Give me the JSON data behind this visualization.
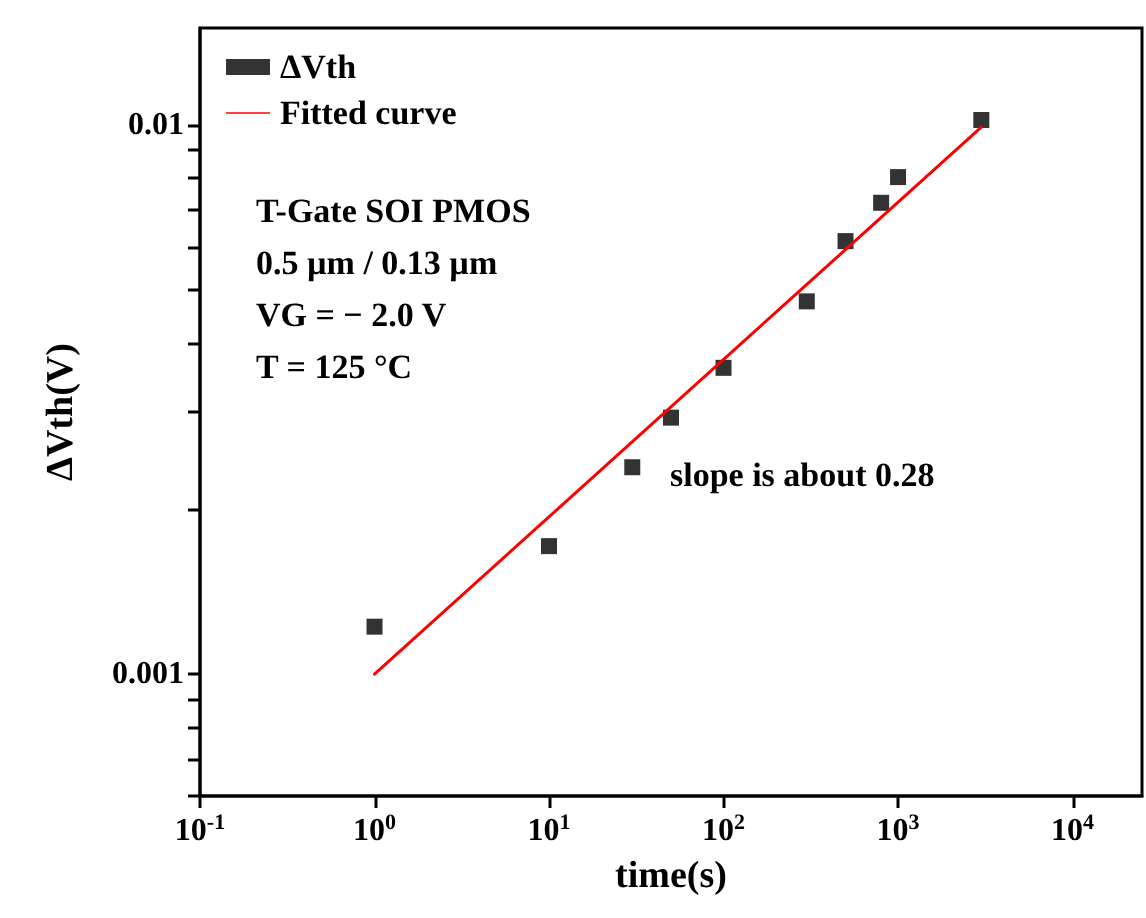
{
  "chart_data": {
    "type": "scatter",
    "xlabel": "time(s)",
    "ylabel": "ΔVth(V)",
    "log": "xy",
    "xlim": [
      0.1,
      25000
    ],
    "ylim": [
      0.0006,
      0.015
    ],
    "xticks": [
      {
        "value": 0.1,
        "label": "10$^{-1}$"
      },
      {
        "value": 1,
        "label": "10$^{0}$"
      },
      {
        "value": 10,
        "label": "10$^{1}$"
      },
      {
        "value": 100,
        "label": "10$^{2}$"
      },
      {
        "value": 1000,
        "label": "10$^{3}$"
      },
      {
        "value": 10000,
        "label": "10$^{4}$"
      }
    ],
    "yticks": [
      {
        "value": 0.0006,
        "label": null
      },
      {
        "value": 0.0007,
        "label": null
      },
      {
        "value": 0.0008,
        "label": null
      },
      {
        "value": 0.0009,
        "label": null
      },
      {
        "value": 0.001,
        "label": "0.001"
      },
      {
        "value": 0.002,
        "label": null
      },
      {
        "value": 0.003,
        "label": null
      },
      {
        "value": 0.004,
        "label": null
      },
      {
        "value": 0.005,
        "label": null
      },
      {
        "value": 0.006,
        "label": null
      },
      {
        "value": 0.007,
        "label": null
      },
      {
        "value": 0.008,
        "label": null
      },
      {
        "value": 0.009,
        "label": null
      },
      {
        "value": 0.01,
        "label": "0.01"
      }
    ],
    "legend": "top left",
    "grid": false,
    "series": [
      {
        "name": "ΔVth",
        "marker": "square",
        "color": "#000000",
        "x": [
          1,
          10,
          30,
          50,
          100,
          300,
          500,
          800,
          1000,
          3000
        ],
        "values": [
          0.00122,
          0.00171,
          0.00238,
          0.00293,
          0.00361,
          0.00477,
          0.00614,
          0.00721,
          0.00803,
          0.0102
        ]
      },
      {
        "name": "Fitted curve",
        "type": "line",
        "marker": "none",
        "line_style": "solid",
        "color": "#ff0000",
        "x": [
          1,
          3000
        ],
        "values": [
          0.001,
          0.0099
        ]
      }
    ],
    "annotations": [
      "T-Gate SOI PMOS",
      "0.5 µm / 0.13 µm",
      "VG = − 2.0 V",
      "T = 125 °C",
      "slope is about 0.28"
    ]
  }
}
